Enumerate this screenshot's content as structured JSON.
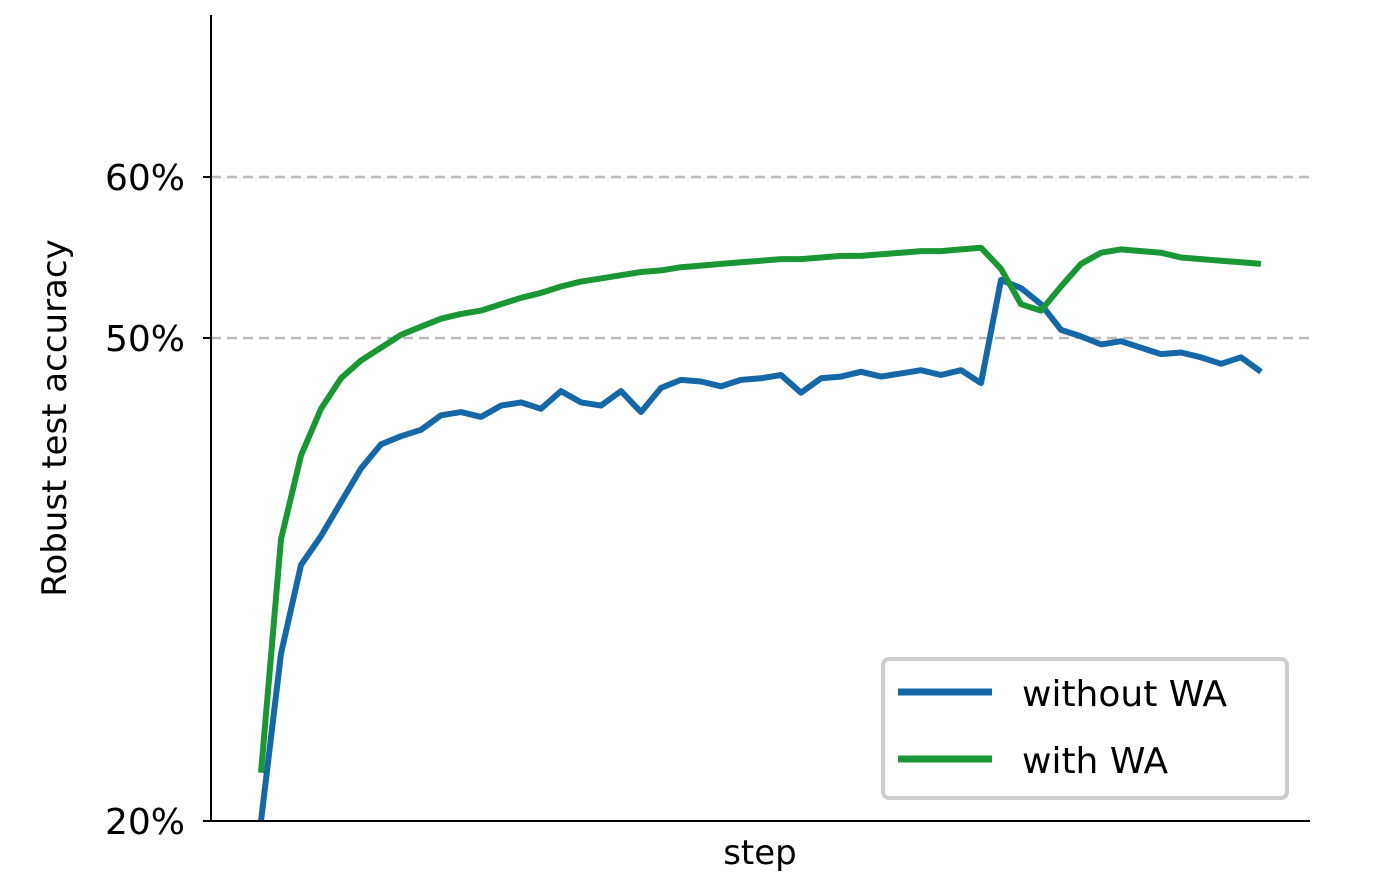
{
  "chart_data": {
    "type": "line",
    "xlabel": "step",
    "ylabel": "Robust test accuracy",
    "yticks": [
      {
        "value": 20,
        "label": "20%"
      },
      {
        "value": 50,
        "label": "50%"
      },
      {
        "value": 60,
        "label": "60%"
      }
    ],
    "grid": "horizontal dashed at 50% and 60%",
    "legend_position": "bottom-right",
    "series": [
      {
        "name": "without WA",
        "color": "#1567a6",
        "x": [
          0,
          4,
          8,
          12,
          16,
          20,
          24,
          28,
          32,
          36,
          40,
          44,
          48,
          52,
          56,
          60,
          64,
          68,
          72,
          76,
          80,
          84,
          88,
          92,
          96,
          100,
          104,
          108,
          112,
          116,
          120,
          124,
          128,
          132,
          136,
          140,
          144,
          148,
          152,
          156,
          160,
          164,
          168,
          172,
          176,
          180,
          184,
          188,
          192,
          196,
          200
        ],
        "y": [
          20.0,
          30.4,
          35.9,
          37.7,
          39.8,
          41.9,
          43.4,
          43.9,
          44.3,
          45.2,
          45.4,
          45.1,
          45.8,
          46.0,
          45.6,
          46.7,
          46.0,
          45.8,
          46.7,
          45.4,
          46.9,
          47.4,
          47.3,
          47.0,
          47.4,
          47.5,
          47.7,
          46.6,
          47.5,
          47.6,
          47.9,
          47.6,
          47.8,
          48.0,
          47.7,
          48.0,
          47.2,
          53.6,
          53.1,
          52.1,
          50.5,
          50.1,
          49.6,
          49.8,
          49.4,
          49.0,
          49.1,
          48.8,
          48.4,
          48.8,
          47.9
        ],
        "y_clipped_below_20": true
      },
      {
        "name": "with WA",
        "color": "#1a9634",
        "x": [
          0,
          4,
          8,
          12,
          16,
          20,
          24,
          28,
          32,
          36,
          40,
          44,
          48,
          52,
          56,
          60,
          64,
          68,
          72,
          76,
          80,
          84,
          88,
          92,
          96,
          100,
          104,
          108,
          112,
          116,
          120,
          124,
          128,
          132,
          136,
          140,
          144,
          148,
          152,
          156,
          160,
          164,
          168,
          172,
          176,
          180,
          184,
          188,
          192,
          196,
          200
        ],
        "y": [
          23.0,
          37.5,
          42.7,
          45.6,
          47.5,
          48.6,
          49.4,
          50.2,
          50.7,
          51.2,
          51.5,
          51.7,
          52.1,
          52.5,
          52.8,
          53.2,
          53.5,
          53.7,
          53.9,
          54.1,
          54.2,
          54.4,
          54.5,
          54.6,
          54.7,
          54.8,
          54.9,
          54.9,
          55.0,
          55.1,
          55.1,
          55.2,
          55.3,
          55.4,
          55.4,
          55.5,
          55.6,
          54.3,
          52.1,
          51.7,
          53.2,
          54.6,
          55.3,
          55.5,
          55.4,
          55.3,
          55.0,
          54.9,
          54.8,
          54.7,
          54.6
        ]
      }
    ]
  }
}
